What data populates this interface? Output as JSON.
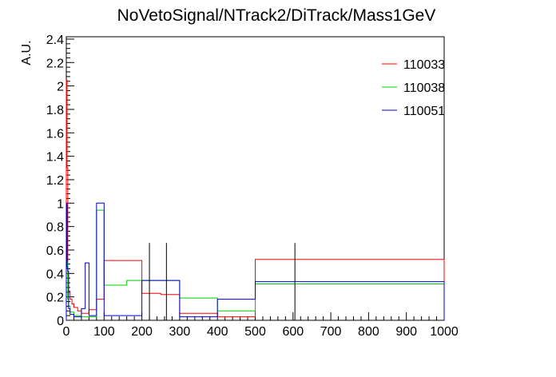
{
  "chart_data": {
    "type": "histogram",
    "title": "NoVetoSignal/NTrack2/DiTrack/Mass1GeV",
    "xlabel": "",
    "ylabel": "A.U.",
    "xlim": [
      0,
      1000
    ],
    "ylim": [
      0,
      2.42
    ],
    "x_ticks": [
      0,
      100,
      200,
      300,
      400,
      500,
      600,
      700,
      800,
      900,
      1000
    ],
    "y_ticks": [
      0,
      0.2,
      0.4,
      0.6,
      0.8,
      1,
      1.2,
      1.4,
      1.6,
      1.8,
      2,
      2.2,
      2.4
    ],
    "x_tick_labels": [
      "0",
      "100",
      "200",
      "300",
      "400",
      "500",
      "600",
      "700",
      "800",
      "900",
      "1000"
    ],
    "y_tick_labels": [
      "0",
      "0.2",
      "0.4",
      "0.6",
      "0.8",
      "1",
      "1.2",
      "1.4",
      "1.6",
      "1.8",
      "2",
      "2.2",
      "2.4"
    ],
    "legend_position": "top-right",
    "grid": false,
    "series": [
      {
        "name": "110033",
        "color": "#ff0000",
        "bins": [
          [
            0,
            2,
            2.05
          ],
          [
            2,
            4,
            1.3
          ],
          [
            4,
            6,
            0.38
          ],
          [
            6,
            10,
            0.25
          ],
          [
            10,
            15,
            0.18
          ],
          [
            15,
            20,
            0.14
          ],
          [
            20,
            30,
            0.11
          ],
          [
            30,
            40,
            0.08
          ],
          [
            40,
            60,
            0.06
          ],
          [
            60,
            80,
            0.09
          ],
          [
            80,
            100,
            0.18
          ],
          [
            100,
            200,
            0.51
          ],
          [
            200,
            250,
            0.23
          ],
          [
            250,
            300,
            0.22
          ],
          [
            300,
            400,
            0.06
          ],
          [
            400,
            500,
            0.03
          ],
          [
            500,
            1000,
            0.52
          ]
        ]
      },
      {
        "name": "110038",
        "color": "#00cc00",
        "bins": [
          [
            0,
            2,
            0.96
          ],
          [
            2,
            4,
            0.5
          ],
          [
            4,
            6,
            0.18
          ],
          [
            6,
            10,
            0.12
          ],
          [
            10,
            20,
            0.07
          ],
          [
            20,
            40,
            0.04
          ],
          [
            40,
            60,
            0.03
          ],
          [
            60,
            80,
            0.03
          ],
          [
            80,
            100,
            0.94
          ],
          [
            100,
            160,
            0.3
          ],
          [
            160,
            300,
            0.34
          ],
          [
            300,
            400,
            0.19
          ],
          [
            400,
            500,
            0.08
          ],
          [
            500,
            1000,
            0.31
          ]
        ]
      },
      {
        "name": "110051",
        "color": "#0000cc",
        "bins": [
          [
            0,
            2,
            1.0
          ],
          [
            2,
            4,
            0.45
          ],
          [
            4,
            6,
            0.42
          ],
          [
            6,
            10,
            0.1
          ],
          [
            10,
            20,
            0.05
          ],
          [
            20,
            40,
            0.03
          ],
          [
            40,
            50,
            0.1
          ],
          [
            50,
            60,
            0.49
          ],
          [
            60,
            80,
            0.04
          ],
          [
            80,
            100,
            1.0
          ],
          [
            100,
            200,
            0.04
          ],
          [
            200,
            300,
            0.34
          ],
          [
            300,
            400,
            0.03
          ],
          [
            400,
            500,
            0.18
          ],
          [
            500,
            1000,
            0.33
          ]
        ]
      }
    ],
    "error_bars": [
      {
        "x": 220,
        "ylo": 0.0,
        "yhi": 0.66
      },
      {
        "x": 265,
        "ylo": 0.0,
        "yhi": 0.66
      },
      {
        "x": 605,
        "ylo": 0.0,
        "yhi": 0.66
      }
    ]
  }
}
